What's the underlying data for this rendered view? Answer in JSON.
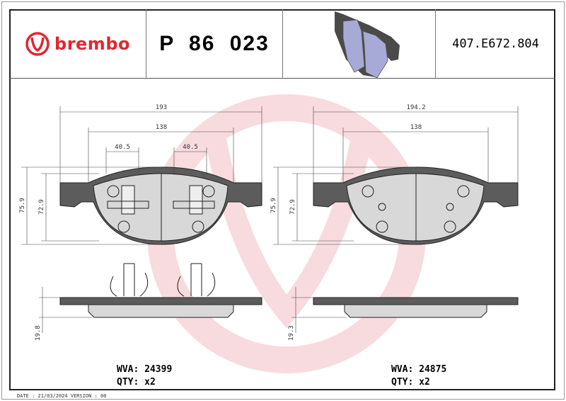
{
  "header": {
    "brand": "brembo",
    "part_number": "P 86 023",
    "reference": "407.E672.804"
  },
  "dimensions_left": {
    "width_total": "193",
    "width_inner": "138",
    "clip_a": "40.5",
    "clip_b": "40.5",
    "height_total": "75.9",
    "height_inner": "72.9",
    "thickness": "19.8"
  },
  "dimensions_right": {
    "width_total": "194.2",
    "width_inner": "138",
    "height_total": "75.9",
    "height_inner": "72.9",
    "thickness": "19.3"
  },
  "left_info": {
    "wva": "WVA: 24399",
    "qty": "QTY: x2"
  },
  "right_info": {
    "wva": "WVA: 24875",
    "qty": "QTY: x2"
  },
  "footer": {
    "date": "DATE : 21/03/2024 VERSION : 00"
  },
  "colors": {
    "brand": "#e3262f",
    "watermark": "#f4c6cb",
    "backplate": "#5c5c5c",
    "pad": "#d6d6d6",
    "render": "#a7a9d6"
  }
}
